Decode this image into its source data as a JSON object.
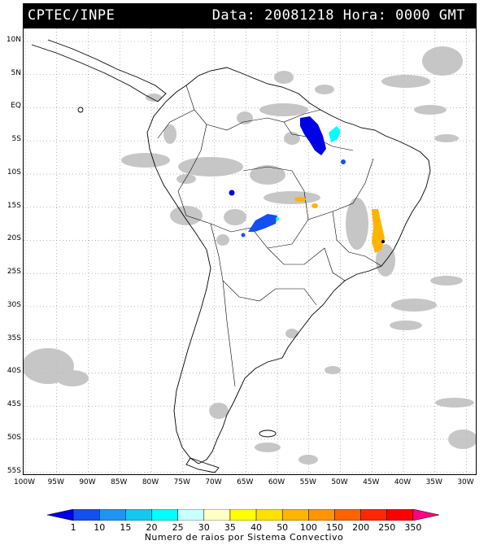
{
  "header": {
    "source": "CPTEC/INPE",
    "datetime": "Data: 20081218 Hora: 0000 GMT"
  },
  "lat_labels": [
    "10N",
    "5N",
    "EQ",
    "5S",
    "10S",
    "15S",
    "20S",
    "25S",
    "30S",
    "35S",
    "40S",
    "45S",
    "50S",
    "55S"
  ],
  "lon_labels": [
    "100W",
    "95W",
    "90W",
    "85W",
    "80W",
    "75W",
    "70W",
    "65W",
    "60W",
    "55W",
    "50W",
    "45W",
    "40W",
    "35W",
    "30W"
  ],
  "legend": {
    "values": [
      "1",
      "10",
      "15",
      "20",
      "25",
      "30",
      "35",
      "40",
      "50",
      "100",
      "150",
      "200",
      "250",
      "350"
    ],
    "colors": [
      "#0000e6",
      "#1450f0",
      "#1e96f0",
      "#14c8f0",
      "#00ffff",
      "#c8ffff",
      "#ffffc8",
      "#ffff00",
      "#ffe000",
      "#ffb400",
      "#ff9600",
      "#ff6400",
      "#ff2800",
      "#ff0000",
      "#ff0080"
    ],
    "caption": "Numero de raios por Sistema Convectivo"
  },
  "map": {
    "coastline_color": "#000000",
    "grid_style": "dotted",
    "cloud_color": "#bdbdbd"
  }
}
